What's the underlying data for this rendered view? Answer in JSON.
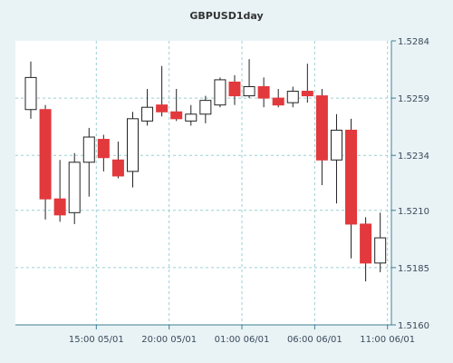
{
  "colors": {
    "background": "#e9f3f6",
    "plot_background": "#ffffff",
    "grid": "#9ccfd2",
    "axis": "#3d7f95",
    "bullish_fill": "#ffffff",
    "bearish_fill": "#e2393d",
    "candle_outline": "#222222",
    "text": "#333333"
  },
  "chart_data": {
    "type": "candlestick",
    "title": "GBPUSD1day",
    "y_axis": {
      "position": "right",
      "ylim": [
        1.516,
        1.5284
      ],
      "ticks": [
        "1.5284",
        "1.5259",
        "1.5234",
        "1.5210",
        "1.5185",
        "1.5160"
      ],
      "tick_values": [
        1.5284,
        1.5259,
        1.5234,
        1.521,
        1.5185,
        1.516
      ]
    },
    "x_axis": {
      "ticks": [
        "15:00 05/01",
        "20:00 05/01",
        "01:00 06/01",
        "06:00 06/01",
        "11:00 06/01"
      ],
      "tick_candle_index": [
        4.5,
        9.5,
        14.5,
        19.5,
        24.5
      ]
    },
    "grid": true,
    "candles": [
      {
        "open": 1.5254,
        "high": 1.5275,
        "low": 1.525,
        "close": 1.5268
      },
      {
        "open": 1.5254,
        "high": 1.5256,
        "low": 1.5206,
        "close": 1.5215
      },
      {
        "open": 1.5215,
        "high": 1.5232,
        "low": 1.5205,
        "close": 1.5208
      },
      {
        "open": 1.5209,
        "high": 1.5235,
        "low": 1.5204,
        "close": 1.5231
      },
      {
        "open": 1.5231,
        "high": 1.5246,
        "low": 1.5216,
        "close": 1.5242
      },
      {
        "open": 1.5241,
        "high": 1.5243,
        "low": 1.5227,
        "close": 1.5233
      },
      {
        "open": 1.5232,
        "high": 1.524,
        "low": 1.5224,
        "close": 1.5225
      },
      {
        "open": 1.5227,
        "high": 1.5253,
        "low": 1.522,
        "close": 1.525
      },
      {
        "open": 1.5249,
        "high": 1.5263,
        "low": 1.5247,
        "close": 1.5255
      },
      {
        "open": 1.5256,
        "high": 1.5273,
        "low": 1.5251,
        "close": 1.5253
      },
      {
        "open": 1.5253,
        "high": 1.5263,
        "low": 1.5249,
        "close": 1.525
      },
      {
        "open": 1.5249,
        "high": 1.5256,
        "low": 1.5247,
        "close": 1.5252
      },
      {
        "open": 1.5252,
        "high": 1.526,
        "low": 1.5248,
        "close": 1.5258
      },
      {
        "open": 1.5256,
        "high": 1.5268,
        "low": 1.5255,
        "close": 1.5267
      },
      {
        "open": 1.5266,
        "high": 1.5269,
        "low": 1.5256,
        "close": 1.526
      },
      {
        "open": 1.526,
        "high": 1.5276,
        "low": 1.5259,
        "close": 1.5264
      },
      {
        "open": 1.5264,
        "high": 1.5268,
        "low": 1.5255,
        "close": 1.5259
      },
      {
        "open": 1.5259,
        "high": 1.5263,
        "low": 1.5255,
        "close": 1.5256
      },
      {
        "open": 1.5257,
        "high": 1.5264,
        "low": 1.5255,
        "close": 1.5262
      },
      {
        "open": 1.5262,
        "high": 1.5274,
        "low": 1.5257,
        "close": 1.526
      },
      {
        "open": 1.526,
        "high": 1.5263,
        "low": 1.5221,
        "close": 1.5232
      },
      {
        "open": 1.5232,
        "high": 1.5252,
        "low": 1.5213,
        "close": 1.5245
      },
      {
        "open": 1.5245,
        "high": 1.525,
        "low": 1.5189,
        "close": 1.5204
      },
      {
        "open": 1.5204,
        "high": 1.5207,
        "low": 1.5179,
        "close": 1.5187
      },
      {
        "open": 1.5187,
        "high": 1.5209,
        "low": 1.5183,
        "close": 1.5198
      }
    ]
  }
}
